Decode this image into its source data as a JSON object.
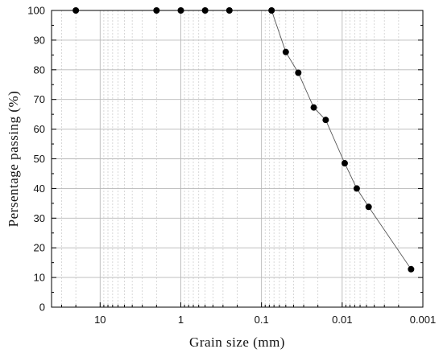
{
  "chart_data": {
    "type": "scatter",
    "title": "",
    "xlabel": "Grain size (mm)",
    "ylabel": "Persentage passing (%)",
    "x_scale": "log",
    "x_reversed": true,
    "xlim": [
      40,
      0.001
    ],
    "ylim": [
      0,
      100
    ],
    "x_ticks": [
      10,
      1,
      0.1,
      0.01,
      0.001
    ],
    "x_tick_labels": [
      "10",
      "1",
      "0.1",
      "0.01",
      "0.001"
    ],
    "y_ticks": [
      0,
      10,
      20,
      30,
      40,
      50,
      60,
      70,
      80,
      90,
      100
    ],
    "y_tick_labels": [
      "0",
      "10",
      "20",
      "30",
      "40",
      "50",
      "60",
      "70",
      "80",
      "90",
      "100"
    ],
    "grid": true,
    "minor_grid": true,
    "series": [
      {
        "x": [
          20,
          2,
          1,
          0.5,
          0.25,
          0.075,
          0.05,
          0.035,
          0.0225,
          0.016,
          0.0093,
          0.0066,
          0.0047,
          0.0014
        ],
        "y": [
          100,
          100,
          100,
          100,
          100,
          100,
          86,
          79,
          67.3,
          63.1,
          48.5,
          40,
          33.8,
          12.8
        ],
        "connected_range": [
          5,
          13
        ],
        "marker_color": "#000000",
        "line_color": "#555555"
      }
    ]
  }
}
